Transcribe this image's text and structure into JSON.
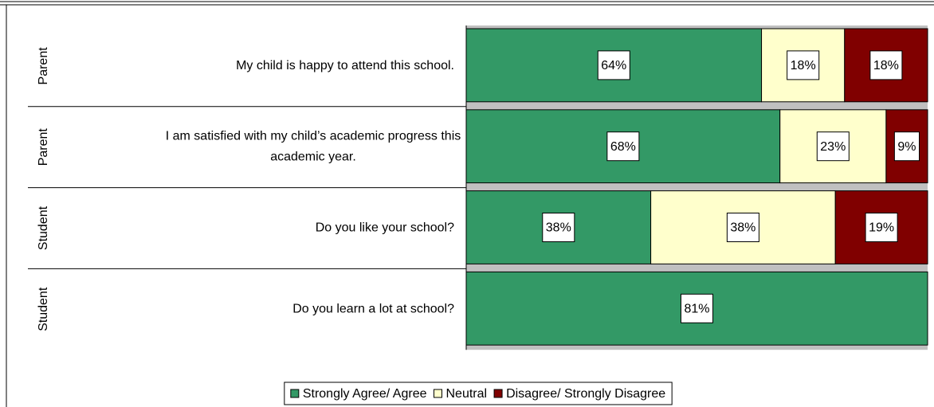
{
  "chart_data": {
    "type": "bar",
    "orientation": "horizontal",
    "stacking": "percent",
    "groups": [
      "Parent",
      "Parent",
      "Student",
      "Student"
    ],
    "categories": [
      "My child is happy to attend this school.",
      "I am satisfied with my child’s academic progress this academic year.",
      "Do you like your school?",
      "Do you learn a lot at school?"
    ],
    "series": [
      {
        "name": "Strongly Agree/ Agree",
        "color": "#339966",
        "values": [
          64,
          68,
          38,
          81
        ]
      },
      {
        "name": "Neutral",
        "color": "#ffffcc",
        "values": [
          18,
          23,
          38,
          null
        ]
      },
      {
        "name": "Disagree/ Strongly Disagree",
        "color": "#800000",
        "values": [
          18,
          9,
          19,
          null
        ]
      }
    ],
    "value_labels": [
      [
        "64%",
        "68%",
        "38%",
        "81%"
      ],
      [
        "18%",
        "23%",
        "38%",
        null
      ],
      [
        "18%",
        "9%",
        "19%",
        null
      ]
    ],
    "legend": "bottom"
  }
}
